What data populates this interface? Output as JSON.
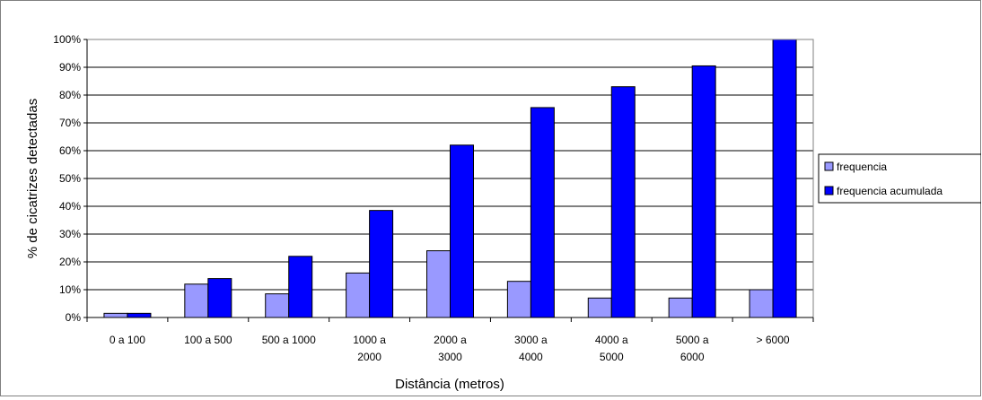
{
  "chart_data": {
    "type": "bar",
    "title": "",
    "xlabel": "Distância (metros)",
    "ylabel": "% de cicatrizes detectadas",
    "ylim": [
      0,
      100
    ],
    "yticks": [
      "0%",
      "10%",
      "20%",
      "30%",
      "40%",
      "50%",
      "60%",
      "70%",
      "80%",
      "90%",
      "100%"
    ],
    "grid": true,
    "legend": "right",
    "categories": [
      [
        "0 a 100"
      ],
      [
        "100 a 500"
      ],
      [
        "500 a 1000"
      ],
      [
        "1000 a",
        "2000"
      ],
      [
        "2000 a",
        "3000"
      ],
      [
        "3000 a",
        "4000"
      ],
      [
        "4000 a",
        "5000"
      ],
      [
        "5000 a",
        "6000"
      ],
      [
        "> 6000"
      ]
    ],
    "series": [
      {
        "name": "frequencia",
        "color": "#9999ff",
        "values": [
          1.5,
          12,
          8.5,
          16,
          24,
          13,
          7,
          7,
          10
        ]
      },
      {
        "name": "frequencia acumulada",
        "color": "#0000ff",
        "values": [
          1.5,
          14,
          22,
          38.5,
          62,
          75.5,
          83,
          90.5,
          100
        ]
      }
    ]
  }
}
